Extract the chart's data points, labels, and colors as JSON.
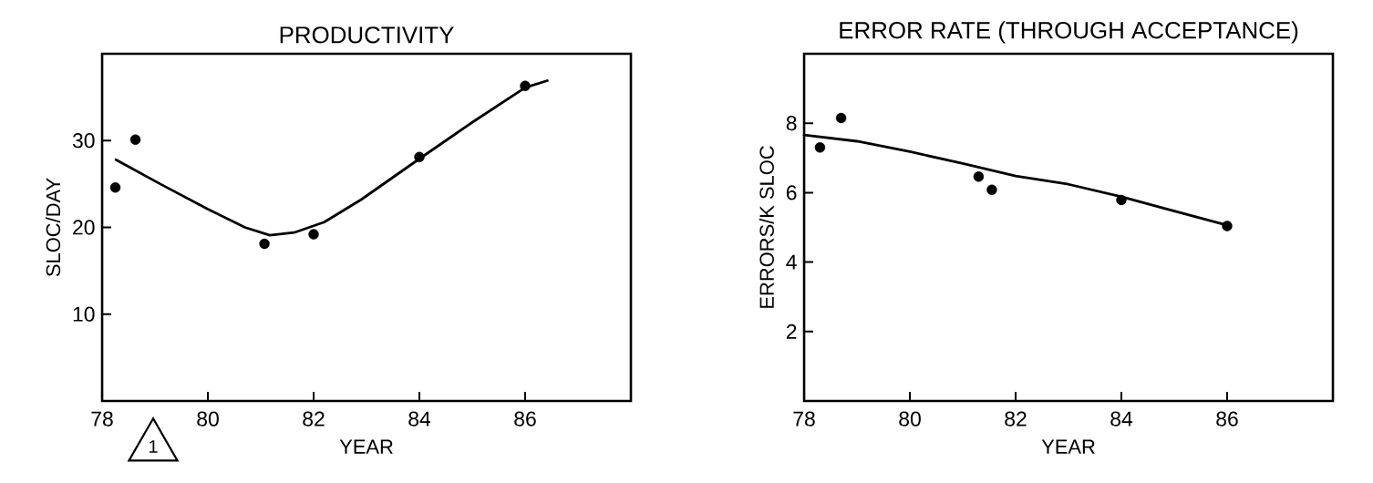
{
  "chart_data": [
    {
      "type": "scatter",
      "title": "PRODUCTIVITY",
      "xlabel": "YEAR",
      "ylabel": "SLOC/DAY",
      "xlim": [
        78,
        88
      ],
      "ylim": [
        0,
        40
      ],
      "xticks": [
        78,
        80,
        82,
        84,
        86
      ],
      "yticks": [
        10,
        20,
        30
      ],
      "annotations": [
        "1"
      ],
      "series": [
        {
          "type": "scatter",
          "marker": "circle",
          "color": "#000000",
          "x": [
            78.25,
            78.63,
            81.07,
            82,
            84,
            86
          ],
          "values": [
            24.6,
            30.1,
            18.1,
            19.2,
            28.1,
            36.3
          ]
        },
        {
          "type": "line",
          "marker": "none",
          "color": "#000000",
          "x": [
            78.26,
            79.1,
            80,
            80.7,
            81.17,
            81.63,
            82.2,
            82.9,
            84,
            85,
            86,
            86.42
          ],
          "values": [
            27.8,
            25.0,
            22.1,
            20.0,
            19.1,
            19.4,
            20.6,
            23.2,
            27.9,
            32.1,
            36.1,
            36.9
          ]
        }
      ]
    },
    {
      "type": "scatter",
      "title": "ERROR RATE (THROUGH ACCEPTANCE)",
      "xlabel": "YEAR",
      "ylabel": "ERRORS/K SLOC",
      "xlim": [
        78,
        88
      ],
      "ylim": [
        0,
        10
      ],
      "xticks": [
        78,
        80,
        82,
        84,
        86
      ],
      "yticks": [
        2,
        4,
        6,
        8
      ],
      "series": [
        {
          "type": "scatter",
          "marker": "circle",
          "color": "#000000",
          "x": [
            78.3,
            78.7,
            81.3,
            81.55,
            84,
            86
          ],
          "values": [
            7.3,
            8.15,
            6.46,
            6.08,
            5.79,
            5.04
          ]
        },
        {
          "type": "line",
          "marker": "none",
          "color": "#000000",
          "x": [
            78,
            79,
            80,
            81,
            82,
            83,
            84,
            85,
            86
          ],
          "values": [
            7.66,
            7.48,
            7.18,
            6.84,
            6.48,
            6.24,
            5.88,
            5.47,
            5.06
          ]
        }
      ]
    }
  ]
}
